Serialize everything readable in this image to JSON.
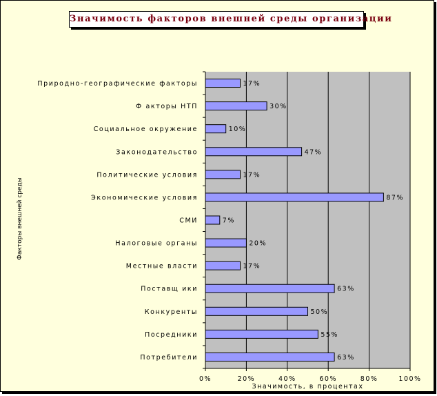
{
  "chart_data": {
    "type": "bar",
    "orientation": "horizontal",
    "title": "Значимость факторов внешней среды организации",
    "xlabel": "Значимость, в процентах",
    "ylabel": "Факторы внешней среды",
    "xlim": [
      0,
      100
    ],
    "x_ticks": [
      "0%",
      "20%",
      "40%",
      "60%",
      "80%",
      "100%"
    ],
    "grid": true,
    "legend": "none",
    "categories": [
      "Природно-географические факторы",
      "Ф акторы НТП",
      "Социальное окружение",
      "Законодательство",
      "Политические условия",
      "Экономические условия",
      "СМИ",
      "Налоговые органы",
      "Местные власти",
      "Поставщ ики",
      "Конкуренты",
      "Посредники",
      "Потребители"
    ],
    "values": [
      17,
      30,
      10,
      47,
      17,
      87,
      7,
      20,
      17,
      63,
      50,
      55,
      63
    ],
    "value_labels": [
      "17%",
      "30%",
      "10%",
      "47%",
      "17%",
      "87%",
      "7%",
      "20%",
      "17%",
      "63%",
      "50%",
      "55%",
      "63%"
    ],
    "colors": {
      "bar_fill": "#9999ff",
      "plot_background": "#c0c0c0",
      "chart_background": "#ffffdd",
      "title_color": "#7a0010"
    }
  }
}
